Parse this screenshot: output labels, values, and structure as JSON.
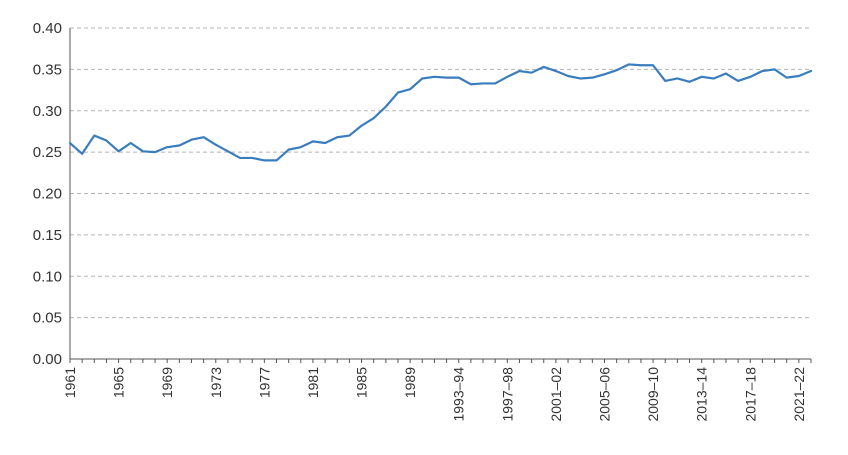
{
  "chart_data": {
    "type": "line",
    "title": "",
    "xlabel": "",
    "ylabel": "",
    "ylim": [
      0,
      0.4
    ],
    "y_ticks": [
      "0.00",
      "0.05",
      "0.10",
      "0.15",
      "0.20",
      "0.25",
      "0.30",
      "0.35",
      "0.40"
    ],
    "grid": true,
    "legend": "none",
    "line_color": "#3a7dbf",
    "x_tick_labels": [
      "1961",
      "1965",
      "1969",
      "1973",
      "1977",
      "1981",
      "1985",
      "1989",
      "1993–94",
      "1997–98",
      "2001–02",
      "2005–06",
      "2009–10",
      "2013–14",
      "2017–18",
      "2021–22"
    ],
    "x": [
      "1961",
      "1962",
      "1963",
      "1964",
      "1965",
      "1966",
      "1967",
      "1968",
      "1969",
      "1970",
      "1971",
      "1972",
      "1973",
      "1974",
      "1975",
      "1976",
      "1977",
      "1978",
      "1979",
      "1980",
      "1981",
      "1982",
      "1983",
      "1984",
      "1985",
      "1986",
      "1987",
      "1988",
      "1989",
      "1990",
      "1991",
      "1992",
      "1993–94",
      "1994–95",
      "1995–96",
      "1996–97",
      "1997–98",
      "1998–99",
      "1999–00",
      "2000–01",
      "2001–02",
      "2002–03",
      "2003–04",
      "2004–05",
      "2005–06",
      "2006–07",
      "2007–08",
      "2008–09",
      "2009–10",
      "2010–11",
      "2011–12",
      "2012–13",
      "2013–14",
      "2014–15",
      "2015–16",
      "2016–17",
      "2017–18",
      "2018–19",
      "2019–20",
      "2020–21",
      "2021–22",
      "2022–23"
    ],
    "series": [
      {
        "values": [
          0.261,
          0.248,
          0.27,
          0.264,
          0.251,
          0.261,
          0.251,
          0.25,
          0.256,
          0.258,
          0.265,
          0.268,
          0.259,
          0.251,
          0.243,
          0.243,
          0.24,
          0.24,
          0.253,
          0.256,
          0.263,
          0.261,
          0.268,
          0.27,
          0.282,
          0.291,
          0.305,
          0.322,
          0.326,
          0.339,
          0.341,
          0.34,
          0.34,
          0.332,
          0.333,
          0.333,
          0.341,
          0.348,
          0.346,
          0.353,
          0.348,
          0.342,
          0.339,
          0.34,
          0.344,
          0.349,
          0.356,
          0.355,
          0.355,
          0.336,
          0.339,
          0.335,
          0.341,
          0.339,
          0.345,
          0.336,
          0.341,
          0.348,
          0.35,
          0.34,
          0.342,
          0.348
        ]
      }
    ]
  }
}
